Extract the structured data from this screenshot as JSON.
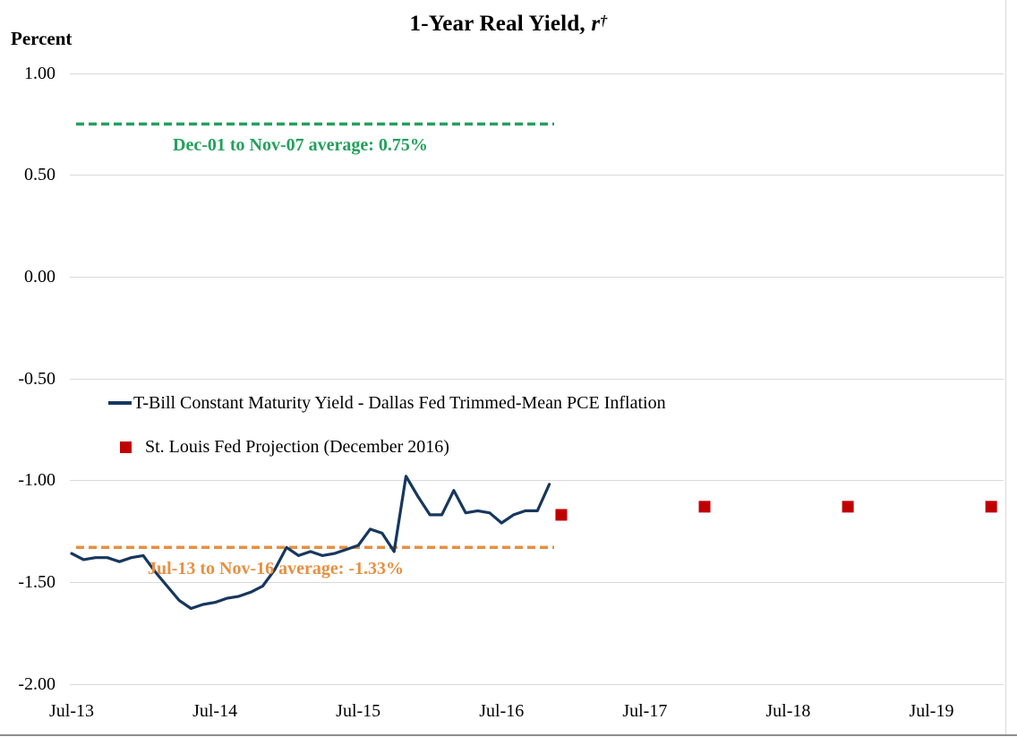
{
  "title": {
    "prefix": "1-Year Real Yield, ",
    "symbol": "r",
    "dagger": "†"
  },
  "y_axis_unit": "Percent",
  "colors": {
    "line": "#17375E",
    "projection": "#C00000",
    "avg_high": "#22A15C",
    "avg_low": "#E69041",
    "gridline": "#D9D9D9"
  },
  "chart_data": {
    "type": "line",
    "title": "1-Year Real Yield, r†",
    "ylabel": "Percent",
    "ylim": [
      -2.0,
      1.0
    ],
    "grid": "horizontal",
    "legend_position": "inside-left-middle",
    "y_axis": {
      "tick_labels": [
        "1.00",
        "0.50",
        "0.00",
        "-0.50",
        "-1.00",
        "-1.50",
        "-2.00"
      ],
      "tick_values": [
        1.0,
        0.5,
        0.0,
        -0.5,
        -1.0,
        -1.5,
        -2.0
      ]
    },
    "x_axis": {
      "ticks": [
        {
          "label": "Jul-13",
          "m": 0
        },
        {
          "label": "Jul-14",
          "m": 12
        },
        {
          "label": "Jul-15",
          "m": 24
        },
        {
          "label": "Jul-16",
          "m": 36
        },
        {
          "label": "Jul-17",
          "m": 48
        },
        {
          "label": "Jul-18",
          "m": 60
        },
        {
          "label": "Jul-19",
          "m": 72
        }
      ]
    },
    "series": [
      {
        "name": "T-Bill Constant Maturity Yield - Dallas Fed Trimmed-Mean PCE Inflation",
        "type": "line",
        "color": "#17375E",
        "points": [
          {
            "date": "Jul-13",
            "v": -1.36
          },
          {
            "date": "Aug-13",
            "v": -1.39
          },
          {
            "date": "Sep-13",
            "v": -1.38
          },
          {
            "date": "Oct-13",
            "v": -1.38
          },
          {
            "date": "Nov-13",
            "v": -1.4
          },
          {
            "date": "Dec-13",
            "v": -1.38
          },
          {
            "date": "Jan-14",
            "v": -1.37
          },
          {
            "date": "Feb-14",
            "v": -1.45
          },
          {
            "date": "Mar-14",
            "v": -1.52
          },
          {
            "date": "Apr-14",
            "v": -1.59
          },
          {
            "date": "May-14",
            "v": -1.63
          },
          {
            "date": "Jun-14",
            "v": -1.61
          },
          {
            "date": "Jul-14",
            "v": -1.6
          },
          {
            "date": "Aug-14",
            "v": -1.58
          },
          {
            "date": "Sep-14",
            "v": -1.57
          },
          {
            "date": "Oct-14",
            "v": -1.55
          },
          {
            "date": "Nov-14",
            "v": -1.52
          },
          {
            "date": "Dec-14",
            "v": -1.44
          },
          {
            "date": "Jan-15",
            "v": -1.33
          },
          {
            "date": "Feb-15",
            "v": -1.37
          },
          {
            "date": "Mar-15",
            "v": -1.35
          },
          {
            "date": "Apr-15",
            "v": -1.37
          },
          {
            "date": "May-15",
            "v": -1.36
          },
          {
            "date": "Jun-15",
            "v": -1.34
          },
          {
            "date": "Jul-15",
            "v": -1.32
          },
          {
            "date": "Aug-15",
            "v": -1.24
          },
          {
            "date": "Sep-15",
            "v": -1.26
          },
          {
            "date": "Oct-15",
            "v": -1.35
          },
          {
            "date": "Nov-15",
            "v": -0.98
          },
          {
            "date": "Dec-15",
            "v": -1.08
          },
          {
            "date": "Jan-16",
            "v": -1.17
          },
          {
            "date": "Feb-16",
            "v": -1.17
          },
          {
            "date": "Mar-16",
            "v": -1.05
          },
          {
            "date": "Apr-16",
            "v": -1.16
          },
          {
            "date": "May-16",
            "v": -1.15
          },
          {
            "date": "Jun-16",
            "v": -1.16
          },
          {
            "date": "Jul-16",
            "v": -1.21
          },
          {
            "date": "Aug-16",
            "v": -1.17
          },
          {
            "date": "Sep-16",
            "v": -1.15
          },
          {
            "date": "Oct-16",
            "v": -1.15
          },
          {
            "date": "Nov-16",
            "v": -1.02
          }
        ]
      },
      {
        "name": "St. Louis Fed Projection (December 2016)",
        "type": "scatter-square",
        "color": "#C00000",
        "points": [
          {
            "date": "Dec-16",
            "m": 41,
            "v": -1.17
          },
          {
            "date": "Dec-17",
            "m": 53,
            "v": -1.13
          },
          {
            "date": "Dec-18",
            "m": 65,
            "v": -1.13
          },
          {
            "date": "Dec-19",
            "m": 77,
            "v": -1.13
          }
        ]
      }
    ],
    "reference_lines": [
      {
        "value": 0.75,
        "label": "Dec-01 to Nov-07 average: 0.75%",
        "color": "#22A15C",
        "style": "dashed"
      },
      {
        "value": -1.33,
        "label": "Jul-13 to Nov-16 average: -1.33%",
        "color": "#E69041",
        "style": "dashed"
      }
    ]
  }
}
